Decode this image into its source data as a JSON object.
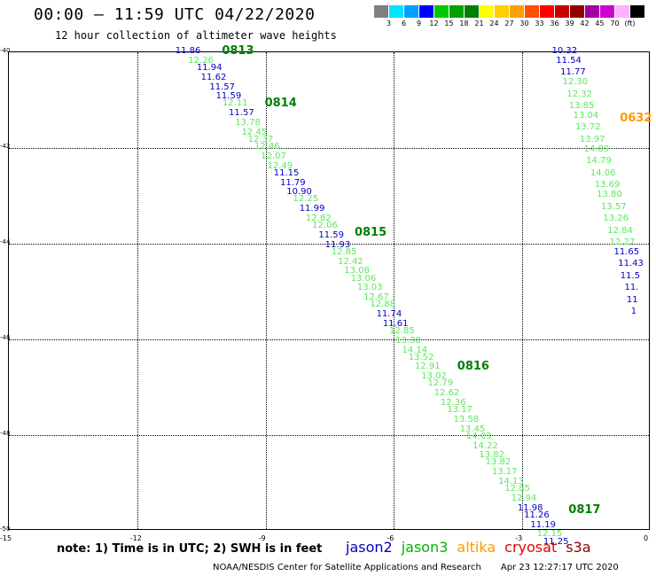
{
  "title": "00:00 – 11:59 UTC 04/22/2020",
  "subtitle": "12 hour collection of altimeter wave heights",
  "colorbar": {
    "colors": [
      "#7f7f7f",
      "#00e5ff",
      "#00a0ff",
      "#0000ff",
      "#00c800",
      "#00a000",
      "#008000",
      "#ffff00",
      "#ffd000",
      "#ffa000",
      "#ff5000",
      "#ff0000",
      "#c80000",
      "#960000",
      "#a000a0",
      "#d000d0",
      "#ffb0ff",
      "#000000"
    ],
    "labels": [
      "3",
      "6",
      "9",
      "12",
      "15",
      "18",
      "21",
      "24",
      "27",
      "30",
      "33",
      "36",
      "39",
      "42",
      "45",
      "70",
      "(ft)"
    ]
  },
  "axes": {
    "x_ticks": [
      "-15",
      "-12",
      "-9",
      "-6",
      "-3",
      "0"
    ],
    "y_ticks": [
      "-40",
      "-42",
      "-44",
      "-46",
      "-48",
      "-50"
    ]
  },
  "notes": "note:  1) Time is in UTC;  2) SWH is in feet",
  "legend": [
    {
      "name": "jason2",
      "color": "#0000c8"
    },
    {
      "name": "jason3",
      "color": "#00b400"
    },
    {
      "name": "altika",
      "color": "#ff9900"
    },
    {
      "name": "cryosat",
      "color": "#e00000"
    },
    {
      "name": "s3a",
      "color": "#8b0000"
    }
  ],
  "footer": {
    "org": "NOAA/NESDIS Center for Satellite Applications and Research",
    "timestamp": "Apr 23 12:27:17 UTC 2020"
  },
  "time_labels": [
    {
      "text": "0813",
      "color": "#008000",
      "lon": -10.0,
      "lat": -40.0
    },
    {
      "text": "0814",
      "color": "#008000",
      "lon": -9.0,
      "lat": -41.1
    },
    {
      "text": "0815",
      "color": "#008000",
      "lon": -6.9,
      "lat": -43.8
    },
    {
      "text": "0816",
      "color": "#008000",
      "lon": -4.5,
      "lat": -46.6
    },
    {
      "text": "0817",
      "color": "#008000",
      "lon": -1.9,
      "lat": -49.6
    },
    {
      "text": "0632",
      "color": "#ff9900",
      "lon": -0.7,
      "lat": -41.4
    }
  ],
  "points": [
    {
      "v": "11.86",
      "s": "j2",
      "lon": -10.8,
      "lat": -40.0
    },
    {
      "v": "12.26",
      "s": "j3",
      "lon": -10.5,
      "lat": -40.2
    },
    {
      "v": "11.94",
      "s": "j2",
      "lon": -10.3,
      "lat": -40.35
    },
    {
      "v": "11.62",
      "s": "j2",
      "lon": -10.2,
      "lat": -40.55
    },
    {
      "v": "11.57",
      "s": "j2",
      "lon": -10.0,
      "lat": -40.75
    },
    {
      "v": "11.59",
      "s": "j2",
      "lon": -9.85,
      "lat": -40.95
    },
    {
      "v": "12.11",
      "s": "j3",
      "lon": -9.7,
      "lat": -41.1
    },
    {
      "v": "11.57",
      "s": "j2",
      "lon": -9.55,
      "lat": -41.3
    },
    {
      "v": "13.78",
      "s": "j3",
      "lon": -9.4,
      "lat": -41.5
    },
    {
      "v": "12.45",
      "s": "j3",
      "lon": -9.25,
      "lat": -41.7
    },
    {
      "v": "12.37",
      "s": "j3",
      "lon": -9.1,
      "lat": -41.85
    },
    {
      "v": "12.46",
      "s": "j3",
      "lon": -8.95,
      "lat": -42.0
    },
    {
      "v": "12.07",
      "s": "j3",
      "lon": -8.8,
      "lat": -42.2
    },
    {
      "v": "12.49",
      "s": "j3",
      "lon": -8.65,
      "lat": -42.4
    },
    {
      "v": "11.15",
      "s": "j2",
      "lon": -8.5,
      "lat": -42.55
    },
    {
      "v": "11.79",
      "s": "j2",
      "lon": -8.35,
      "lat": -42.75
    },
    {
      "v": "10.90",
      "s": "j2",
      "lon": -8.2,
      "lat": -42.95
    },
    {
      "v": "12.25",
      "s": "j3",
      "lon": -8.05,
      "lat": -43.1
    },
    {
      "v": "11.99",
      "s": "j2",
      "lon": -7.9,
      "lat": -43.3
    },
    {
      "v": "12.82",
      "s": "j3",
      "lon": -7.75,
      "lat": -43.5
    },
    {
      "v": "12.06",
      "s": "j3",
      "lon": -7.6,
      "lat": -43.65
    },
    {
      "v": "11.59",
      "s": "j2",
      "lon": -7.45,
      "lat": -43.85
    },
    {
      "v": "11.93",
      "s": "j2",
      "lon": -7.3,
      "lat": -44.05
    },
    {
      "v": "12.85",
      "s": "j3",
      "lon": -7.15,
      "lat": -44.2
    },
    {
      "v": "12.42",
      "s": "j3",
      "lon": -7.0,
      "lat": -44.4
    },
    {
      "v": "13.08",
      "s": "j3",
      "lon": -6.85,
      "lat": -44.6
    },
    {
      "v": "13.06",
      "s": "j3",
      "lon": -6.7,
      "lat": -44.75
    },
    {
      "v": "13.03",
      "s": "j3",
      "lon": -6.55,
      "lat": -44.95
    },
    {
      "v": "12.67",
      "s": "j3",
      "lon": -6.4,
      "lat": -45.15
    },
    {
      "v": "12.88",
      "s": "j3",
      "lon": -6.25,
      "lat": -45.3
    },
    {
      "v": "11.74",
      "s": "j2",
      "lon": -6.1,
      "lat": -45.5
    },
    {
      "v": "11.61",
      "s": "j2",
      "lon": -5.95,
      "lat": -45.7
    },
    {
      "v": "12.85",
      "s": "j3",
      "lon": -5.8,
      "lat": -45.85
    },
    {
      "v": "13.38",
      "s": "j3",
      "lon": -5.65,
      "lat": -46.05
    },
    {
      "v": "14.14",
      "s": "j3",
      "lon": -5.5,
      "lat": -46.25
    },
    {
      "v": "13.52",
      "s": "j3",
      "lon": -5.35,
      "lat": -46.4
    },
    {
      "v": "12.91",
      "s": "j3",
      "lon": -5.2,
      "lat": -46.6
    },
    {
      "v": "13.02",
      "s": "j3",
      "lon": -5.05,
      "lat": -46.8
    },
    {
      "v": "12.79",
      "s": "j3",
      "lon": -4.9,
      "lat": -46.95
    },
    {
      "v": "12.62",
      "s": "j3",
      "lon": -4.75,
      "lat": -47.15
    },
    {
      "v": "12.36",
      "s": "j3",
      "lon": -4.6,
      "lat": -47.35
    },
    {
      "v": "13.17",
      "s": "j3",
      "lon": -4.45,
      "lat": -47.5
    },
    {
      "v": "13.58",
      "s": "j3",
      "lon": -4.3,
      "lat": -47.7
    },
    {
      "v": "13.45",
      "s": "j3",
      "lon": -4.15,
      "lat": -47.9
    },
    {
      "v": "14.03",
      "s": "j3",
      "lon": -4.0,
      "lat": -48.05
    },
    {
      "v": "14.22",
      "s": "j3",
      "lon": -3.85,
      "lat": -48.25
    },
    {
      "v": "13.82",
      "s": "j3",
      "lon": -3.7,
      "lat": -48.45
    },
    {
      "v": "13.82",
      "s": "j3",
      "lon": -3.55,
      "lat": -48.6
    },
    {
      "v": "13.17",
      "s": "j3",
      "lon": -3.4,
      "lat": -48.8
    },
    {
      "v": "14.13",
      "s": "j3",
      "lon": -3.25,
      "lat": -49.0
    },
    {
      "v": "12.85",
      "s": "j3",
      "lon": -3.1,
      "lat": -49.15
    },
    {
      "v": "12.94",
      "s": "j3",
      "lon": -2.95,
      "lat": -49.35
    },
    {
      "v": "11.98",
      "s": "j2",
      "lon": -2.8,
      "lat": -49.55
    },
    {
      "v": "11.26",
      "s": "j2",
      "lon": -2.65,
      "lat": -49.7
    },
    {
      "v": "11.19",
      "s": "j2",
      "lon": -2.5,
      "lat": -49.9
    },
    {
      "v": "12.15",
      "s": "j3",
      "lon": -2.35,
      "lat": -50.1
    },
    {
      "v": "11.25",
      "s": "j2",
      "lon": -2.2,
      "lat": -50.25
    },
    {
      "v": "10.32",
      "s": "j2",
      "lon": -2.0,
      "lat": -40.0
    },
    {
      "v": "11.54",
      "s": "j2",
      "lon": -1.9,
      "lat": -40.2
    },
    {
      "v": "11.77",
      "s": "j2",
      "lon": -1.8,
      "lat": -40.45
    },
    {
      "v": "12.30",
      "s": "j3",
      "lon": -1.75,
      "lat": -40.65
    },
    {
      "v": "12.32",
      "s": "j3",
      "lon": -1.65,
      "lat": -40.9
    },
    {
      "v": "13.85",
      "s": "j3",
      "lon": -1.6,
      "lat": -41.15
    },
    {
      "v": "13.04",
      "s": "j3",
      "lon": -1.5,
      "lat": -41.35
    },
    {
      "v": "13.72",
      "s": "j3",
      "lon": -1.45,
      "lat": -41.6
    },
    {
      "v": "13.97",
      "s": "j3",
      "lon": -1.35,
      "lat": -41.85
    },
    {
      "v": "14.89",
      "s": "j3",
      "lon": -1.25,
      "lat": -42.05
    },
    {
      "v": "14.79",
      "s": "j3",
      "lon": -1.2,
      "lat": -42.3
    },
    {
      "v": "14.06",
      "s": "j3",
      "lon": -1.1,
      "lat": -42.55
    },
    {
      "v": "13.69",
      "s": "j3",
      "lon": -1.0,
      "lat": -42.8
    },
    {
      "v": "13.80",
      "s": "j3",
      "lon": -0.95,
      "lat": -43.0
    },
    {
      "v": "13.57",
      "s": "j3",
      "lon": -0.85,
      "lat": -43.25
    },
    {
      "v": "13.26",
      "s": "j3",
      "lon": -0.8,
      "lat": -43.5
    },
    {
      "v": "12.84",
      "s": "j3",
      "lon": -0.7,
      "lat": -43.75
    },
    {
      "v": "12.27",
      "s": "j3",
      "lon": -0.65,
      "lat": -44.0
    },
    {
      "v": "11.65",
      "s": "j2",
      "lon": -0.55,
      "lat": -44.2
    },
    {
      "v": "11.43",
      "s": "j2",
      "lon": -0.45,
      "lat": -44.45
    },
    {
      "v": "11.5",
      "s": "j2",
      "lon": -0.4,
      "lat": -44.7
    },
    {
      "v": "11.",
      "s": "j2",
      "lon": -0.3,
      "lat": -44.95
    },
    {
      "v": "11",
      "s": "j2",
      "lon": -0.25,
      "lat": -45.2
    },
    {
      "v": "1",
      "s": "j2",
      "lon": -0.15,
      "lat": -45.45
    }
  ]
}
